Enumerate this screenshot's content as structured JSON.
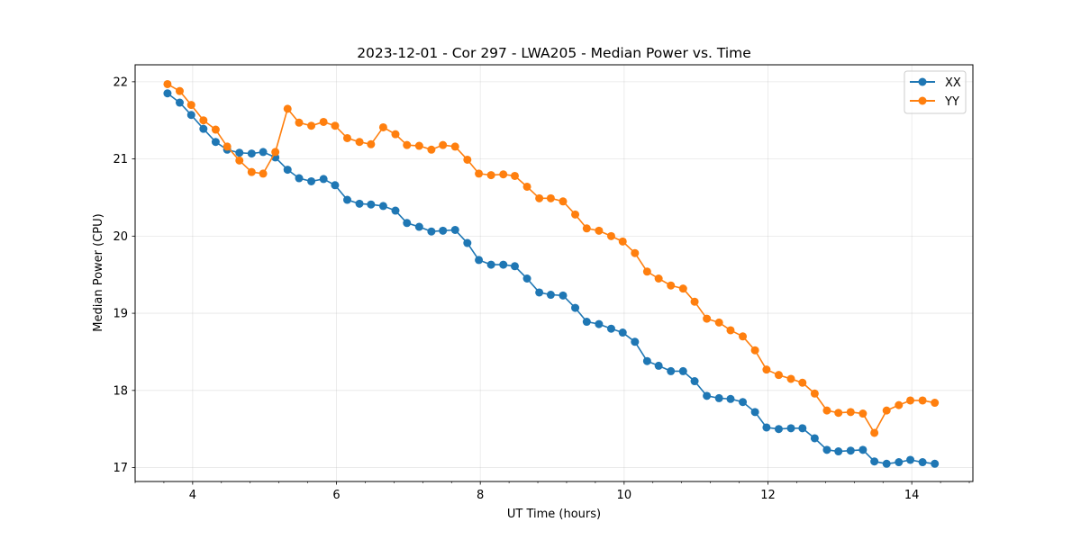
{
  "chart_data": {
    "type": "line",
    "title": "2023-12-01 - Cor 297 - LWA205 - Median Power vs. Time",
    "xlabel": "UT Time (hours)",
    "ylabel": "Median Power (CPU)",
    "xlim": [
      3.2,
      14.85
    ],
    "ylim": [
      16.82,
      22.22
    ],
    "xticks": [
      4,
      6,
      8,
      10,
      12,
      14
    ],
    "xminor_step": 0.4,
    "yticks": [
      17,
      18,
      19,
      20,
      21,
      22
    ],
    "grid": true,
    "legend_position": "top-right",
    "x": [
      3.65,
      3.82,
      3.98,
      4.15,
      4.32,
      4.48,
      4.65,
      4.82,
      4.98,
      5.15,
      5.32,
      5.48,
      5.65,
      5.82,
      5.98,
      6.15,
      6.32,
      6.48,
      6.65,
      6.82,
      6.98,
      7.15,
      7.32,
      7.48,
      7.65,
      7.82,
      7.98,
      8.15,
      8.32,
      8.48,
      8.65,
      8.82,
      8.98,
      9.15,
      9.32,
      9.48,
      9.65,
      9.82,
      9.98,
      10.15,
      10.32,
      10.48,
      10.65,
      10.82,
      10.98,
      11.15,
      11.32,
      11.48,
      11.65,
      11.82,
      11.98,
      12.15,
      12.32,
      12.48,
      12.65,
      12.82,
      12.98,
      13.15,
      13.32,
      13.48,
      13.65,
      13.82,
      13.98,
      14.15,
      14.32
    ],
    "series": [
      {
        "name": "XX",
        "color": "#1f77b4",
        "values": [
          21.85,
          21.73,
          21.57,
          21.39,
          21.22,
          21.12,
          21.08,
          21.07,
          21.09,
          21.02,
          20.86,
          20.75,
          20.71,
          20.74,
          20.66,
          20.47,
          20.42,
          20.41,
          20.39,
          20.33,
          20.17,
          20.12,
          20.06,
          20.07,
          20.08,
          19.91,
          19.69,
          19.63,
          19.63,
          19.61,
          19.45,
          19.27,
          19.24,
          19.23,
          19.07,
          18.89,
          18.86,
          18.8,
          18.75,
          18.63,
          18.38,
          18.32,
          18.25,
          18.25,
          18.12,
          17.93,
          17.9,
          17.89,
          17.85,
          17.72,
          17.52,
          17.5,
          17.51,
          17.51,
          17.38,
          17.23,
          17.21,
          17.22,
          17.23,
          17.08,
          17.05,
          17.07,
          17.1,
          17.07,
          17.05
        ]
      },
      {
        "name": "YY",
        "color": "#ff7f0e",
        "values": [
          21.97,
          21.88,
          21.7,
          21.5,
          21.38,
          21.16,
          20.98,
          20.83,
          20.81,
          21.09,
          21.65,
          21.47,
          21.43,
          21.48,
          21.43,
          21.27,
          21.22,
          21.19,
          21.41,
          21.32,
          21.18,
          21.17,
          21.12,
          21.18,
          21.16,
          20.99,
          20.81,
          20.79,
          20.8,
          20.78,
          20.64,
          20.49,
          20.49,
          20.45,
          20.28,
          20.1,
          20.07,
          20.0,
          19.93,
          19.78,
          19.54,
          19.45,
          19.36,
          19.32,
          19.15,
          18.93,
          18.88,
          18.78,
          18.7,
          18.52,
          18.27,
          18.2,
          18.15,
          18.1,
          17.96,
          17.74,
          17.71,
          17.72,
          17.7,
          17.45,
          17.74,
          17.81,
          17.87,
          17.87,
          17.84
        ]
      }
    ]
  }
}
